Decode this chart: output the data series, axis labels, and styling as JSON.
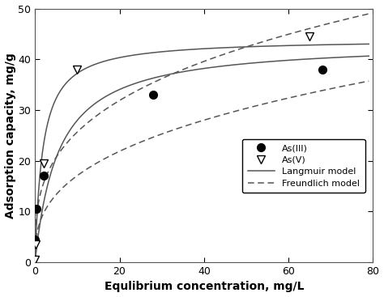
{
  "as3_x": [
    0.05,
    0.3,
    2.0,
    28.0,
    68.0
  ],
  "as3_y": [
    4.5,
    10.5,
    17.0,
    33.0,
    38.0
  ],
  "as5_x": [
    0.05,
    0.2,
    2.0,
    10.0,
    65.0
  ],
  "as5_y": [
    0.5,
    3.5,
    19.5,
    38.0,
    44.5
  ],
  "lang_as3_qmax": 43.5,
  "lang_as3_KL": 0.18,
  "lang_as5_qmax": 44.0,
  "lang_as5_KL": 0.55,
  "freund_as3_KF": 7.5,
  "freund_as3_n": 2.8,
  "freund_as5_KF": 12.5,
  "freund_as5_n": 3.2,
  "xlim": [
    0,
    80
  ],
  "ylim": [
    0,
    50
  ],
  "xticks": [
    0,
    20,
    40,
    60,
    80
  ],
  "yticks": [
    0,
    10,
    20,
    30,
    40,
    50
  ],
  "xlabel": "Equlibrium concentration, mg/L",
  "ylabel": "Adsorption capacity, mg/g",
  "legend_as3": "As(III)",
  "legend_as5": "As(V)",
  "legend_lang": "Langmuir model",
  "legend_freund": "Freundlich model",
  "line_color": "#555555",
  "bg_color": "#ffffff"
}
